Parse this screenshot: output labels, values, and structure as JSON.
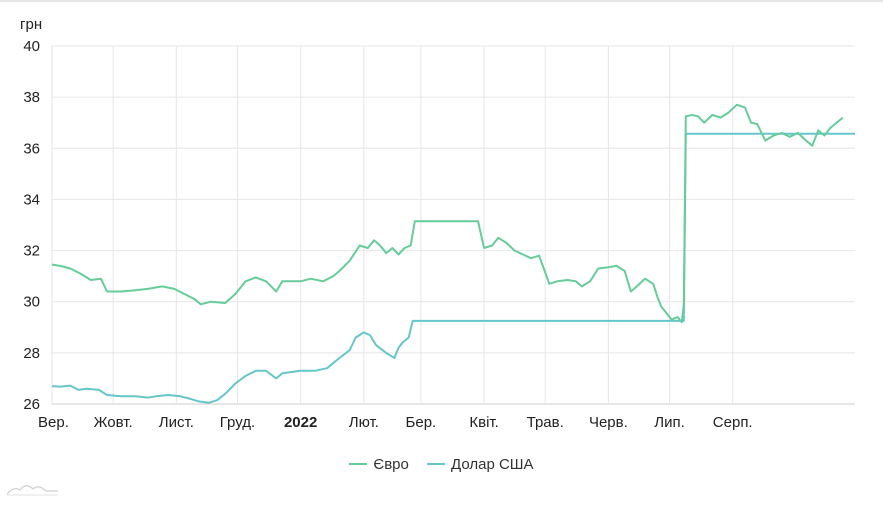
{
  "chart_data": {
    "type": "line",
    "ylabel": "грн",
    "ylim": [
      26,
      40
    ],
    "yticks": [
      26,
      28,
      30,
      32,
      34,
      36,
      38,
      40
    ],
    "grid": true,
    "legend_position": "bottom",
    "x_domain": [
      "2021-09-01",
      "2022-09-30"
    ],
    "xticks": [
      {
        "label": "Вер.",
        "date": "2021-09-01",
        "bold": false
      },
      {
        "label": "Жовт.",
        "date": "2021-10-01",
        "bold": false
      },
      {
        "label": "Лист.",
        "date": "2021-11-01",
        "bold": false
      },
      {
        "label": "Груд.",
        "date": "2021-12-01",
        "bold": false
      },
      {
        "label": "2022",
        "date": "2022-01-01",
        "bold": true
      },
      {
        "label": "Лют.",
        "date": "2022-02-01",
        "bold": false
      },
      {
        "label": "Бер.",
        "date": "2022-03-01",
        "bold": false
      },
      {
        "label": "Квіт.",
        "date": "2022-04-01",
        "bold": false
      },
      {
        "label": "Трав.",
        "date": "2022-05-01",
        "bold": false
      },
      {
        "label": "Черв.",
        "date": "2022-06-01",
        "bold": false
      },
      {
        "label": "Лип.",
        "date": "2022-07-01",
        "bold": false
      },
      {
        "label": "Серп.",
        "date": "2022-08-01",
        "bold": false
      }
    ],
    "series": [
      {
        "name": "Євро",
        "color": "#66cc99",
        "points": [
          [
            "2021-09-01",
            31.45
          ],
          [
            "2021-09-05",
            31.4
          ],
          [
            "2021-09-10",
            31.3
          ],
          [
            "2021-09-15",
            31.1
          ],
          [
            "2021-09-20",
            30.85
          ],
          [
            "2021-09-25",
            30.9
          ],
          [
            "2021-09-28",
            30.4
          ],
          [
            "2021-10-05",
            30.4
          ],
          [
            "2021-10-12",
            30.45
          ],
          [
            "2021-10-18",
            30.5
          ],
          [
            "2021-10-25",
            30.6
          ],
          [
            "2021-10-31",
            30.5
          ],
          [
            "2021-11-05",
            30.3
          ],
          [
            "2021-11-10",
            30.1
          ],
          [
            "2021-11-13",
            29.9
          ],
          [
            "2021-11-18",
            30.0
          ],
          [
            "2021-11-25",
            29.95
          ],
          [
            "2021-11-30",
            30.3
          ],
          [
            "2021-12-05",
            30.8
          ],
          [
            "2021-12-10",
            30.95
          ],
          [
            "2021-12-15",
            30.8
          ],
          [
            "2021-12-20",
            30.4
          ],
          [
            "2021-12-23",
            30.8
          ],
          [
            "2022-01-01",
            30.8
          ],
          [
            "2022-01-06",
            30.9
          ],
          [
            "2022-01-12",
            30.8
          ],
          [
            "2022-01-17",
            31.0
          ],
          [
            "2022-01-20",
            31.2
          ],
          [
            "2022-01-25",
            31.6
          ],
          [
            "2022-01-30",
            32.2
          ],
          [
            "2022-02-03",
            32.1
          ],
          [
            "2022-02-06",
            32.4
          ],
          [
            "2022-02-09",
            32.2
          ],
          [
            "2022-02-12",
            31.9
          ],
          [
            "2022-02-15",
            32.1
          ],
          [
            "2022-02-18",
            31.85
          ],
          [
            "2022-02-21",
            32.1
          ],
          [
            "2022-02-24",
            32.2
          ],
          [
            "2022-02-26",
            33.15
          ],
          [
            "2022-03-29",
            33.15
          ],
          [
            "2022-04-01",
            32.1
          ],
          [
            "2022-04-05",
            32.2
          ],
          [
            "2022-04-08",
            32.5
          ],
          [
            "2022-04-12",
            32.3
          ],
          [
            "2022-04-16",
            32.0
          ],
          [
            "2022-04-20",
            31.85
          ],
          [
            "2022-04-24",
            31.7
          ],
          [
            "2022-04-28",
            31.8
          ],
          [
            "2022-05-03",
            30.7
          ],
          [
            "2022-05-07",
            30.8
          ],
          [
            "2022-05-12",
            30.85
          ],
          [
            "2022-05-16",
            30.8
          ],
          [
            "2022-05-19",
            30.6
          ],
          [
            "2022-05-23",
            30.8
          ],
          [
            "2022-05-27",
            31.3
          ],
          [
            "2022-06-01",
            31.35
          ],
          [
            "2022-06-05",
            31.4
          ],
          [
            "2022-06-09",
            31.2
          ],
          [
            "2022-06-12",
            30.4
          ],
          [
            "2022-06-15",
            30.6
          ],
          [
            "2022-06-19",
            30.9
          ],
          [
            "2022-06-23",
            30.7
          ],
          [
            "2022-06-25",
            30.2
          ],
          [
            "2022-06-27",
            29.8
          ],
          [
            "2022-06-29",
            29.6
          ],
          [
            "2022-07-02",
            29.3
          ],
          [
            "2022-07-05",
            29.4
          ],
          [
            "2022-07-07",
            29.2
          ],
          [
            "2022-07-08",
            29.9
          ],
          [
            "2022-07-09",
            37.25
          ],
          [
            "2022-07-12",
            37.3
          ],
          [
            "2022-07-15",
            37.25
          ],
          [
            "2022-07-18",
            37.0
          ],
          [
            "2022-07-22",
            37.3
          ],
          [
            "2022-07-26",
            37.2
          ],
          [
            "2022-07-30",
            37.4
          ],
          [
            "2022-08-03",
            37.7
          ],
          [
            "2022-08-07",
            37.6
          ],
          [
            "2022-08-10",
            37.0
          ],
          [
            "2022-08-13",
            36.95
          ],
          [
            "2022-08-17",
            36.3
          ],
          [
            "2022-08-21",
            36.5
          ],
          [
            "2022-08-25",
            36.6
          ],
          [
            "2022-08-29",
            36.45
          ],
          [
            "2022-09-02",
            36.6
          ],
          [
            "2022-09-06",
            36.3
          ],
          [
            "2022-09-09",
            36.1
          ],
          [
            "2022-09-12",
            36.7
          ],
          [
            "2022-09-15",
            36.5
          ],
          [
            "2022-09-18",
            36.8
          ],
          [
            "2022-09-24",
            37.2
          ]
        ]
      },
      {
        "name": "Долар США",
        "color": "#66c6cc",
        "points": [
          [
            "2021-09-01",
            26.7
          ],
          [
            "2021-09-05",
            26.68
          ],
          [
            "2021-09-10",
            26.72
          ],
          [
            "2021-09-14",
            26.55
          ],
          [
            "2021-09-18",
            26.6
          ],
          [
            "2021-09-24",
            26.55
          ],
          [
            "2021-09-28",
            26.35
          ],
          [
            "2021-10-05",
            26.3
          ],
          [
            "2021-10-12",
            26.3
          ],
          [
            "2021-10-18",
            26.25
          ],
          [
            "2021-10-22",
            26.3
          ],
          [
            "2021-10-28",
            26.35
          ],
          [
            "2021-11-03",
            26.3
          ],
          [
            "2021-11-08",
            26.2
          ],
          [
            "2021-11-12",
            26.1
          ],
          [
            "2021-11-17",
            26.05
          ],
          [
            "2021-11-21",
            26.15
          ],
          [
            "2021-11-25",
            26.4
          ],
          [
            "2021-11-30",
            26.8
          ],
          [
            "2021-12-05",
            27.1
          ],
          [
            "2021-12-10",
            27.3
          ],
          [
            "2021-12-15",
            27.3
          ],
          [
            "2021-12-20",
            27.0
          ],
          [
            "2021-12-23",
            27.2
          ],
          [
            "2022-01-01",
            27.3
          ],
          [
            "2022-01-08",
            27.3
          ],
          [
            "2022-01-14",
            27.4
          ],
          [
            "2022-01-20",
            27.8
          ],
          [
            "2022-01-25",
            28.1
          ],
          [
            "2022-01-28",
            28.6
          ],
          [
            "2022-02-01",
            28.8
          ],
          [
            "2022-02-04",
            28.7
          ],
          [
            "2022-02-07",
            28.3
          ],
          [
            "2022-02-12",
            28.0
          ],
          [
            "2022-02-16",
            27.8
          ],
          [
            "2022-02-18",
            28.2
          ],
          [
            "2022-02-20",
            28.4
          ],
          [
            "2022-02-23",
            28.6
          ],
          [
            "2022-02-25",
            29.25
          ],
          [
            "2022-07-08",
            29.25
          ],
          [
            "2022-07-09",
            36.57
          ],
          [
            "2022-09-30",
            36.57
          ]
        ]
      }
    ]
  }
}
